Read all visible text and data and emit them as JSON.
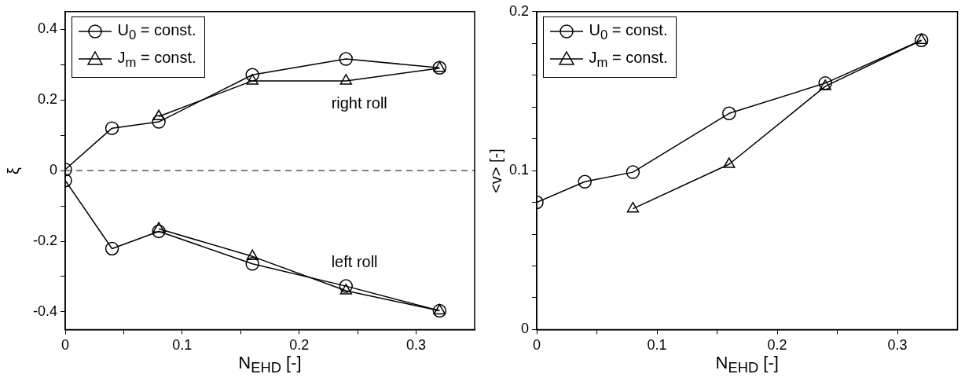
{
  "chart_data": [
    {
      "type": "line",
      "xlabel": "N$_{EHD}$ [-]",
      "ylabel": "ξ",
      "xlim": [
        0,
        0.35
      ],
      "ylim": [
        -0.45,
        0.45
      ],
      "xticks": [
        0,
        {
          "value": 0.05,
          "label": null
        },
        0.1,
        {
          "value": 0.15,
          "label": null
        },
        0.2,
        {
          "value": 0.25,
          "label": null
        },
        0.3
      ],
      "yticks": [
        -0.4,
        {
          "value": -0.3,
          "label": null
        },
        -0.2,
        {
          "value": -0.1,
          "label": null
        },
        0,
        {
          "value": 0.1,
          "label": null
        },
        0.2,
        {
          "value": 0.3,
          "label": null
        },
        0.4
      ],
      "grid": false,
      "legend": "top left",
      "line_style": "solid",
      "ref_lines": [
        {
          "axis": "y",
          "value": 0,
          "line_style": "dashed",
          "color": "#000000"
        }
      ],
      "annotations": [
        "right roll",
        "left roll"
      ],
      "series": [
        {
          "name": "U$_{0}$ = const.",
          "color": "#000000",
          "marker": "circle",
          "x": [
            0,
            0.04,
            0.08,
            0.16,
            0.24,
            0.32
          ],
          "values": [
            0.003,
            0.12,
            0.138,
            0.271,
            0.316,
            0.291
          ]
        },
        {
          "name": "J$_{m}$ = const.",
          "color": "#000000",
          "marker": "triangle",
          "x": [
            0.08,
            0.16,
            0.24,
            0.32
          ],
          "values": [
            0.153,
            0.254,
            0.254,
            0.29
          ]
        },
        {
          "color": "#000000",
          "marker": "circle",
          "x": [
            0,
            0.04,
            0.08,
            0.16,
            0.24,
            0.32
          ],
          "values": [
            -0.028,
            -0.221,
            -0.172,
            -0.264,
            -0.327,
            -0.397
          ]
        },
        {
          "color": "#000000",
          "marker": "triangle",
          "x": [
            0.08,
            0.16,
            0.24,
            0.32
          ],
          "values": [
            -0.165,
            -0.243,
            -0.34,
            -0.397
          ]
        }
      ]
    },
    {
      "type": "line",
      "xlabel": "N$_{EHD}$ [-]",
      "ylabel": "<v> [-]",
      "xlim": [
        0,
        0.35
      ],
      "ylim": [
        0,
        0.2
      ],
      "xticks": [
        0,
        {
          "value": 0.05,
          "label": null
        },
        0.1,
        {
          "value": 0.15,
          "label": null
        },
        0.2,
        {
          "value": 0.25,
          "label": null
        },
        0.3
      ],
      "yticks": [
        0,
        {
          "value": 0.02,
          "label": null
        },
        {
          "value": 0.04,
          "label": null
        },
        {
          "value": 0.06,
          "label": null
        },
        {
          "value": 0.08,
          "label": null
        },
        0.1,
        {
          "value": 0.12,
          "label": null
        },
        {
          "value": 0.14,
          "label": null
        },
        {
          "value": 0.16,
          "label": null
        },
        {
          "value": 0.18,
          "label": null
        },
        0.2
      ],
      "grid": false,
      "legend": "top left",
      "line_style": "solid",
      "series": [
        {
          "name": "U$_{0}$ = const.",
          "color": "#000000",
          "marker": "circle",
          "x": [
            0,
            0.04,
            0.08,
            0.16,
            0.24,
            0.32
          ],
          "values": [
            0.08,
            0.093,
            0.099,
            0.136,
            0.155,
            0.182
          ]
        },
        {
          "name": "J$_{m}$ = const.",
          "color": "#000000",
          "marker": "triangle",
          "x": [
            0.08,
            0.16,
            0.24,
            0.32
          ],
          "values": [
            0.076,
            0.104,
            0.153,
            0.182
          ]
        }
      ]
    }
  ]
}
